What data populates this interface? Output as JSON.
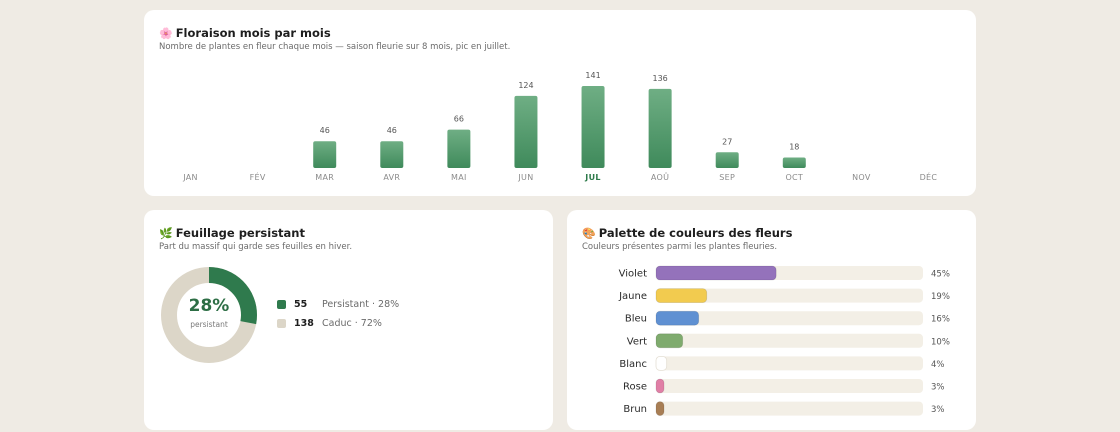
{
  "bloom": {
    "icon": "flower-icon",
    "emoji": "🌸",
    "title": "Floraison mois par mois",
    "subtitle": "Nombre de plantes en fleur chaque mois — saison fleurie sur 8 mois, pic en juillet."
  },
  "foliage": {
    "icon": "leaf-icon",
    "emoji": "🌿",
    "title": "Feuillage persistant",
    "subtitle": "Part du massif qui garde ses feuilles en hiver.",
    "center_value": "28%",
    "center_label": "persistant",
    "legend": [
      {
        "count": "55",
        "text": "Persistant · 28%"
      },
      {
        "count": "138",
        "text": "Caduc · 72%"
      }
    ]
  },
  "palette": {
    "icon": "palette-icon",
    "emoji": "🎨",
    "title": "Palette de couleurs des fleurs",
    "subtitle": "Couleurs présentes parmi les plantes fleuries."
  },
  "colors": {
    "bar_green_top": "#6fae84",
    "bar_green_bottom": "#3f8a5b",
    "persistent": "#2f7a4d",
    "deciduous": "#dcd6c8",
    "track": "#f3efe6"
  },
  "chart_data": [
    {
      "type": "bar",
      "categories": [
        "JAN",
        "FÉV",
        "MAR",
        "AVR",
        "MAI",
        "JUN",
        "JUL",
        "AOÛ",
        "SEP",
        "OCT",
        "NOV",
        "DÉC"
      ],
      "values": [
        0,
        0,
        46,
        46,
        66,
        124,
        141,
        136,
        27,
        18,
        0,
        0
      ],
      "data_labels": [
        "",
        "",
        "46",
        "46",
        "66",
        "124",
        "141",
        "136",
        "27",
        "18",
        "",
        ""
      ],
      "highlight": "JUL",
      "ylim": [
        0,
        141
      ]
    },
    {
      "type": "pie",
      "slices": [
        {
          "name": "Persistant",
          "value": 55,
          "percent": 28,
          "color": "#2f7a4d"
        },
        {
          "name": "Caduc",
          "value": 138,
          "percent": 72,
          "color": "#dcd6c8"
        }
      ]
    },
    {
      "type": "bar",
      "orientation": "horizontal",
      "categories": [
        "Violet",
        "Jaune",
        "Bleu",
        "Vert",
        "Blanc",
        "Rose",
        "Brun"
      ],
      "values": [
        45,
        19,
        16,
        10,
        4,
        3,
        3
      ],
      "data_labels": [
        "45%",
        "19%",
        "16%",
        "10%",
        "4%",
        "3%",
        "3%"
      ],
      "colors": [
        "#9472bb",
        "#f2cb4f",
        "#5f90d2",
        "#7fab6e",
        "#ffffff",
        "#e07fa6",
        "#a87e55"
      ],
      "xlim": [
        0,
        100
      ]
    }
  ]
}
